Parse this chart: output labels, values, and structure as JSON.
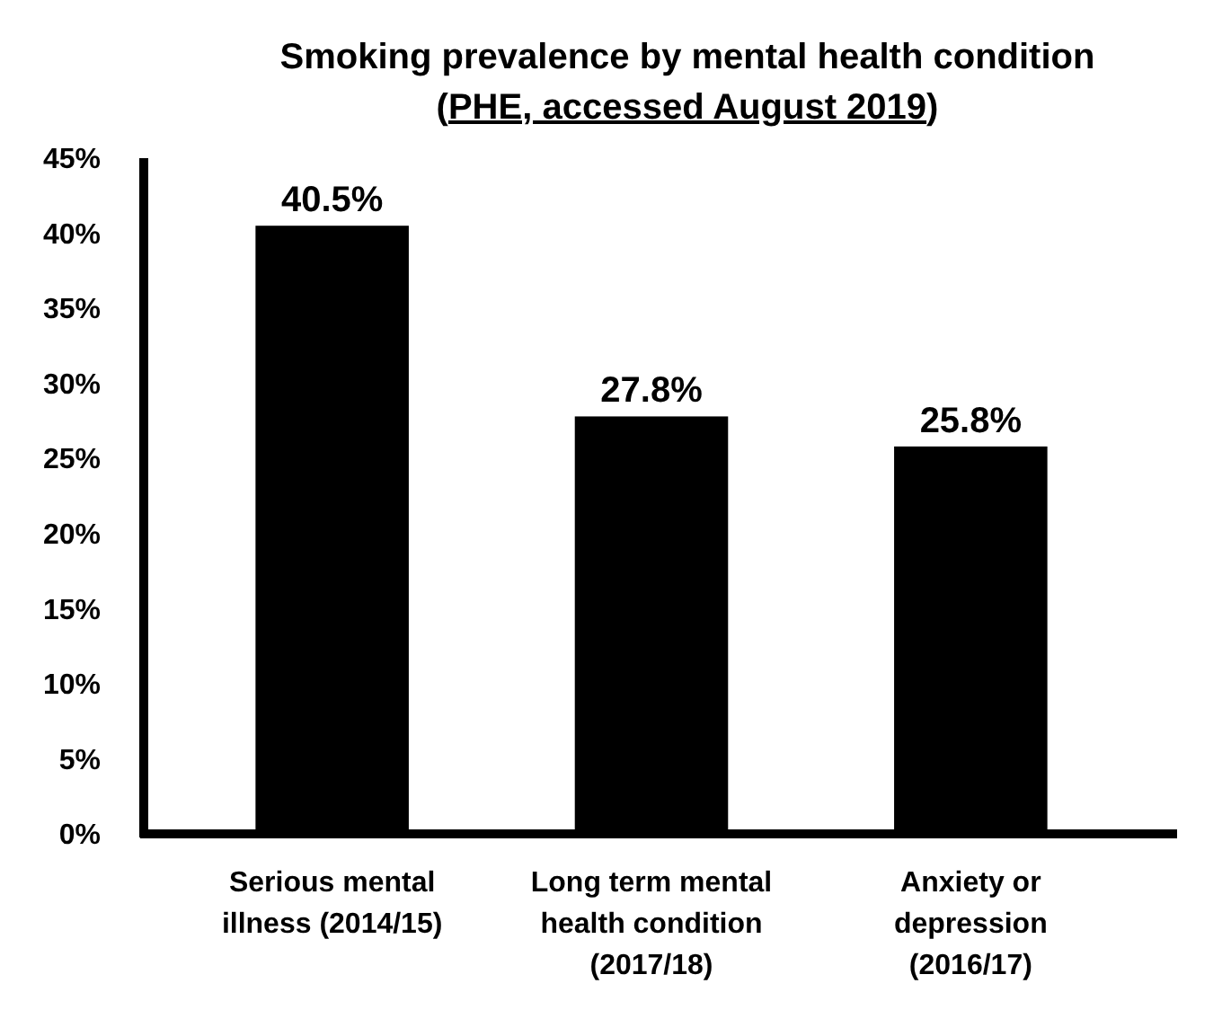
{
  "chart_data": {
    "type": "bar",
    "title": "Smoking prevalence by mental health condition",
    "subtitle": "(PHE, accessed August 2019)",
    "categories": [
      "Serious mental illness (2014/15)",
      "Long term mental health condition (2017/18)",
      "Anxiety or depression (2016/17)"
    ],
    "values": [
      40.5,
      27.8,
      25.8
    ],
    "color": "#000000",
    "ylim": [
      0,
      45
    ],
    "yticks": [
      {
        "value": 0,
        "label": "0%"
      },
      {
        "value": 5,
        "label": "5%"
      },
      {
        "value": 10,
        "label": "10%"
      },
      {
        "value": 15,
        "label": "15%"
      },
      {
        "value": 20,
        "label": "20%"
      },
      {
        "value": 25,
        "label": "25%"
      },
      {
        "value": 30,
        "label": "30%"
      },
      {
        "value": 35,
        "label": "35%"
      },
      {
        "value": 40,
        "label": "40%"
      },
      {
        "value": 45,
        "label": "45%"
      }
    ],
    "value_labels": [
      "40.5%",
      "27.8%",
      "25.8%"
    ],
    "grid": false
  }
}
